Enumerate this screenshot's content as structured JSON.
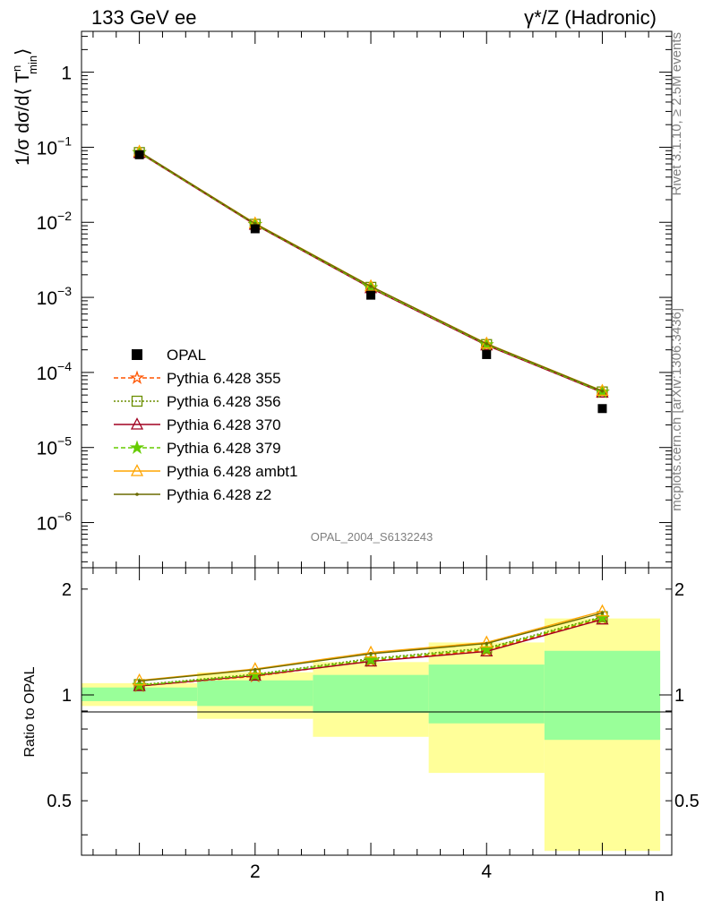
{
  "header": {
    "left": "133 GeV ee",
    "right": "γ*/Z (Hadronic)"
  },
  "side_text": {
    "rivet": "Rivet 3.1.10, ≥ 2.5M events",
    "mcplots": "mcplots.cern.ch [arXiv:1306.3436]"
  },
  "chart_data": {
    "type": "line",
    "analysis_label": "OPAL_2004_S6132243",
    "top_panel": {
      "ylabel": "1/σ dσ/d⟨ T",
      "ylabel_sup": "n",
      "ylabel_sub": "min",
      "ylabel_close": "⟩",
      "yscale": "log",
      "ylim": [
        2.5e-07,
        3.5
      ],
      "y_ticks": [
        {
          "value": 1,
          "label": "1",
          "exp": ""
        },
        {
          "value": 0.1,
          "label": "10",
          "exp": "−1"
        },
        {
          "value": 0.01,
          "label": "10",
          "exp": "−2"
        },
        {
          "value": 0.001,
          "label": "10",
          "exp": "−3"
        },
        {
          "value": 0.0001,
          "label": "10",
          "exp": "−4"
        },
        {
          "value": 1e-05,
          "label": "10",
          "exp": "−5"
        },
        {
          "value": 1e-06,
          "label": "10",
          "exp": "−6"
        }
      ],
      "data": {
        "name": "OPAL",
        "x": [
          1,
          2,
          3,
          4,
          5
        ],
        "y": [
          0.0795,
          0.0082,
          0.00107,
          0.000173,
          3.3e-05
        ]
      },
      "series": [
        {
          "name": "Pythia 6.428 355",
          "color": "#ff5500",
          "dash": "5,3",
          "marker": "star-open",
          "x": [
            1,
            2,
            3,
            4,
            5
          ],
          "y": [
            0.0845,
            0.0093,
            0.00134,
            0.000232,
            5.45e-05
          ]
        },
        {
          "name": "Pythia 6.428 356",
          "color": "#6b8e00",
          "dash": "2,2",
          "marker": "square-open",
          "x": [
            1,
            2,
            3,
            4,
            5
          ],
          "y": [
            0.085,
            0.0094,
            0.00136,
            0.000235,
            5.5e-05
          ]
        },
        {
          "name": "Pythia 6.428 370",
          "color": "#a00020",
          "dash": "",
          "marker": "triangle-open",
          "x": [
            1,
            2,
            3,
            4,
            5
          ],
          "y": [
            0.0842,
            0.0093,
            0.00133,
            0.00023,
            5.4e-05
          ]
        },
        {
          "name": "Pythia 6.428 379",
          "color": "#66cc00",
          "dash": "5,3",
          "marker": "star-filled",
          "x": [
            1,
            2,
            3,
            4,
            5
          ],
          "y": [
            0.0848,
            0.0094,
            0.00135,
            0.000234,
            5.48e-05
          ]
        },
        {
          "name": "Pythia 6.428 ambt1",
          "color": "#ffa500",
          "dash": "",
          "marker": "triangle-open",
          "x": [
            1,
            2,
            3,
            4,
            5
          ],
          "y": [
            0.0875,
            0.0097,
            0.00141,
            0.000243,
            5.7e-05
          ]
        },
        {
          "name": "Pythia 6.428 z2",
          "color": "#6b6b00",
          "dash": "",
          "marker": "dot",
          "x": [
            1,
            2,
            3,
            4,
            5
          ],
          "y": [
            0.0872,
            0.0096,
            0.0014,
            0.000241,
            5.65e-05
          ]
        }
      ]
    },
    "ratio_panel": {
      "ylabel": "Ratio to OPAL",
      "yscale": "log",
      "ylim": [
        0.35,
        2.3
      ],
      "y_ticks": [
        {
          "value": 0.5,
          "label": "0.5"
        },
        {
          "value": 1,
          "label": "1"
        },
        {
          "value": 2,
          "label": "2"
        }
      ],
      "bands": [
        {
          "x0": 0.5,
          "x1": 1.5,
          "green": [
            0.96,
            1.05
          ],
          "yellow": [
            0.93,
            1.08
          ]
        },
        {
          "x0": 1.5,
          "x1": 2.5,
          "green": [
            0.93,
            1.1
          ],
          "yellow": [
            0.855,
            1.16
          ]
        },
        {
          "x0": 2.5,
          "x1": 3.5,
          "green": [
            0.89,
            1.14
          ],
          "yellow": [
            0.76,
            1.24
          ]
        },
        {
          "x0": 3.5,
          "x1": 4.5,
          "green": [
            0.83,
            1.22
          ],
          "yellow": [
            0.6,
            1.41
          ]
        },
        {
          "x0": 4.5,
          "x1": 5.5,
          "green": [
            0.745,
            1.335
          ],
          "yellow": [
            0.36,
            1.65
          ]
        }
      ],
      "series": [
        {
          "name": "Pythia 6.428 355",
          "y": [
            1.06,
            1.13,
            1.25,
            1.34,
            1.65
          ]
        },
        {
          "name": "Pythia 6.428 356",
          "y": [
            1.07,
            1.145,
            1.27,
            1.36,
            1.67
          ]
        },
        {
          "name": "Pythia 6.428 370",
          "y": [
            1.06,
            1.135,
            1.245,
            1.33,
            1.64
          ]
        },
        {
          "name": "Pythia 6.428 379",
          "y": [
            1.065,
            1.14,
            1.26,
            1.35,
            1.66
          ]
        },
        {
          "name": "Pythia 6.428 ambt1",
          "y": [
            1.1,
            1.185,
            1.32,
            1.41,
            1.73
          ]
        },
        {
          "name": "Pythia 6.428 z2",
          "y": [
            1.095,
            1.18,
            1.31,
            1.4,
            1.71
          ]
        }
      ]
    },
    "xlabel": "n",
    "xlim": [
      0.5,
      5.6
    ],
    "x_ticks": [
      2,
      4
    ]
  }
}
